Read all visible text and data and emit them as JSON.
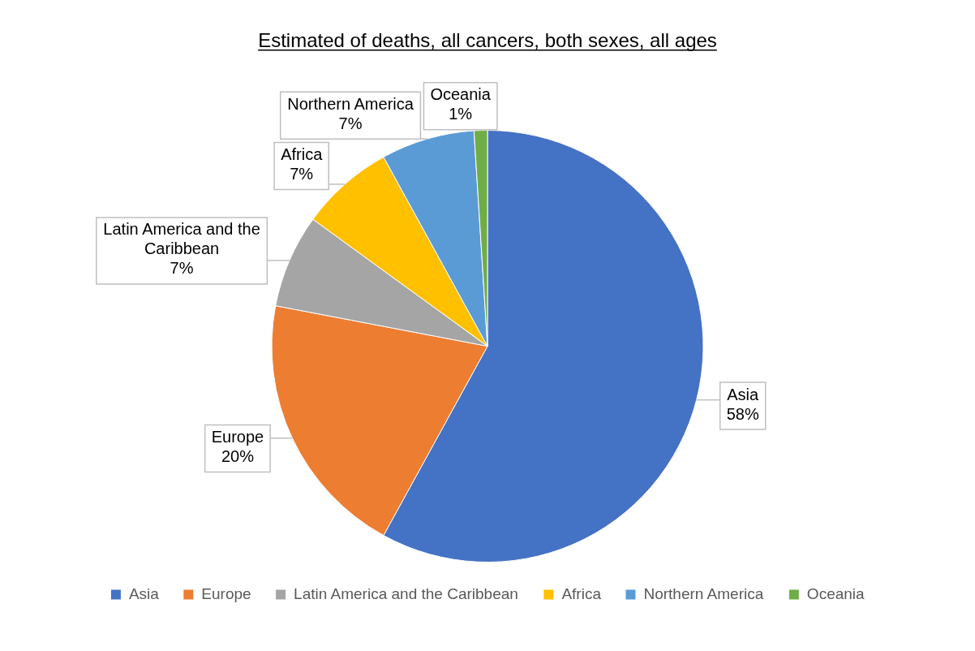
{
  "chart_data": {
    "type": "pie",
    "title": "Estimated of deaths, all cancers, both sexes, all ages",
    "categories": [
      "Asia",
      "Europe",
      "Latin America and the Caribbean",
      "Africa",
      "Northern America",
      "Oceania"
    ],
    "values": [
      58,
      20,
      7,
      7,
      7,
      1
    ],
    "value_labels": [
      "58%",
      "20%",
      "7%",
      "7%",
      "7%",
      "1%"
    ],
    "colors": [
      "#4472c4",
      "#ed7d31",
      "#a5a5a5",
      "#ffc000",
      "#5b9bd5",
      "#70ad47"
    ],
    "legend": "bottom"
  }
}
